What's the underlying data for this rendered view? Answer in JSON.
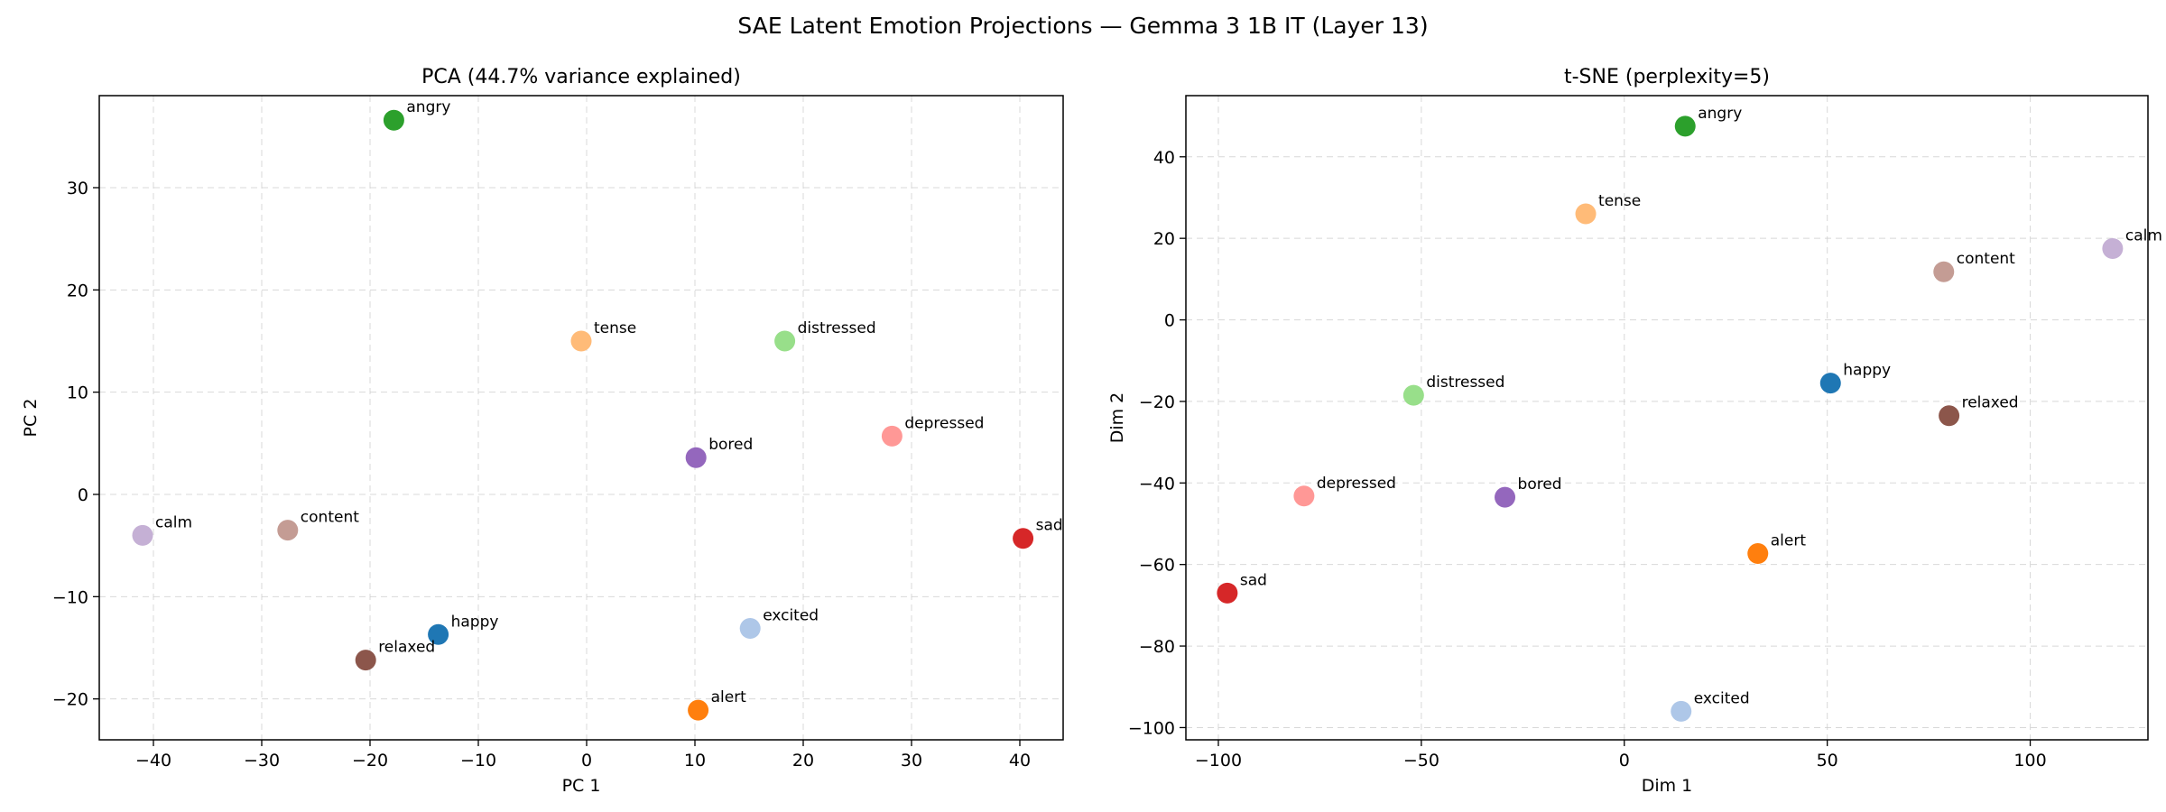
{
  "figure": {
    "title": "SAE Latent Emotion Projections — Gemma 3 1B IT (Layer 13)"
  },
  "chart_data": [
    {
      "type": "scatter",
      "title": "PCA  (44.7% variance explained)",
      "xlabel": "PC 1",
      "ylabel": "PC 2",
      "xlim": [
        -45,
        44
      ],
      "ylim": [
        -24,
        39
      ],
      "xticks": [
        -40,
        -30,
        -20,
        -10,
        0,
        10,
        20,
        30,
        40
      ],
      "yticks": [
        -20,
        -10,
        0,
        10,
        20,
        30
      ],
      "grid": true,
      "points": [
        {
          "label": "angry",
          "x": -17.8,
          "y": 36.6,
          "color": "#2ca02c"
        },
        {
          "label": "tense",
          "x": -0.5,
          "y": 15.0,
          "color": "#ffbb78"
        },
        {
          "label": "distressed",
          "x": 18.3,
          "y": 15.0,
          "color": "#98df8a"
        },
        {
          "label": "depressed",
          "x": 28.2,
          "y": 5.7,
          "color": "#ff9896"
        },
        {
          "label": "bored",
          "x": 10.1,
          "y": 3.6,
          "color": "#9467bd"
        },
        {
          "label": "calm",
          "x": -41.0,
          "y": -4.0,
          "color": "#c5b0d5"
        },
        {
          "label": "content",
          "x": -27.6,
          "y": -3.5,
          "color": "#c49c94"
        },
        {
          "label": "sad",
          "x": 40.3,
          "y": -4.3,
          "color": "#d62728"
        },
        {
          "label": "happy",
          "x": -13.7,
          "y": -13.7,
          "color": "#1f77b4"
        },
        {
          "label": "excited",
          "x": 15.1,
          "y": -13.1,
          "color": "#aec7e8"
        },
        {
          "label": "relaxed",
          "x": -20.4,
          "y": -16.2,
          "color": "#8c564b"
        },
        {
          "label": "alert",
          "x": 10.3,
          "y": -21.1,
          "color": "#ff7f0e"
        }
      ]
    },
    {
      "type": "scatter",
      "title": "t-SNE  (perplexity=5)",
      "xlabel": "Dim 1",
      "ylabel": "Dim 2",
      "xlim": [
        -108,
        129
      ],
      "ylim": [
        -103,
        55
      ],
      "xticks": [
        -100,
        -50,
        0,
        50,
        100
      ],
      "yticks": [
        -100,
        -80,
        -60,
        -40,
        -20,
        0,
        20,
        40
      ],
      "grid": true,
      "points": [
        {
          "label": "angry",
          "x": 15.0,
          "y": 47.5,
          "color": "#2ca02c"
        },
        {
          "label": "tense",
          "x": -9.5,
          "y": 26.0,
          "color": "#ffbb78"
        },
        {
          "label": "calm",
          "x": 120.3,
          "y": 17.5,
          "color": "#c5b0d5"
        },
        {
          "label": "content",
          "x": 78.7,
          "y": 11.8,
          "color": "#c49c94"
        },
        {
          "label": "happy",
          "x": 50.8,
          "y": -15.5,
          "color": "#1f77b4"
        },
        {
          "label": "distressed",
          "x": -51.9,
          "y": -18.5,
          "color": "#98df8a"
        },
        {
          "label": "relaxed",
          "x": 80.0,
          "y": -23.5,
          "color": "#8c564b"
        },
        {
          "label": "depressed",
          "x": -78.9,
          "y": -43.2,
          "color": "#ff9896"
        },
        {
          "label": "bored",
          "x": -29.4,
          "y": -43.5,
          "color": "#9467bd"
        },
        {
          "label": "alert",
          "x": 32.9,
          "y": -57.3,
          "color": "#ff7f0e"
        },
        {
          "label": "sad",
          "x": -97.8,
          "y": -67.0,
          "color": "#d62728"
        },
        {
          "label": "excited",
          "x": 14.0,
          "y": -96.0,
          "color": "#aec7e8"
        }
      ]
    }
  ]
}
